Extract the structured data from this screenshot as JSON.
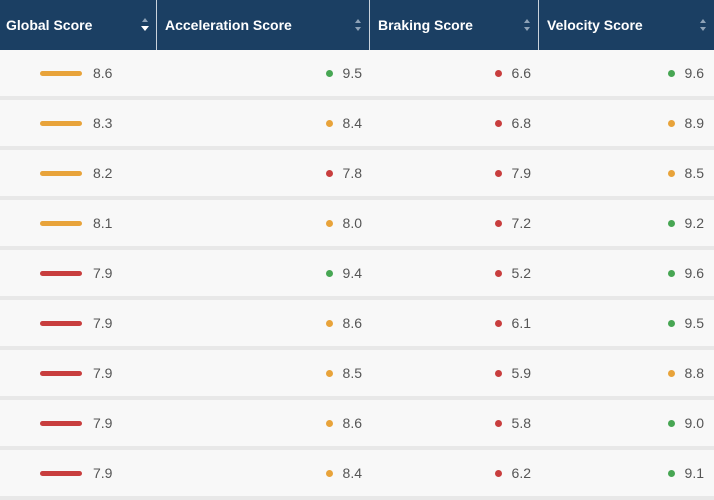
{
  "header": {
    "columns": [
      {
        "label": "Global Score",
        "sort": "desc"
      },
      {
        "label": "Acceleration Score",
        "sort": "none"
      },
      {
        "label": "Braking Score",
        "sort": "none"
      },
      {
        "label": "Velocity Score",
        "sort": "none"
      }
    ]
  },
  "colors": {
    "header_bg": "#1b3f63",
    "orange": "#e8a33a",
    "red": "#c83e3e",
    "green": "#47a653"
  },
  "rows": [
    {
      "global": "8.6",
      "global_color": "orange",
      "acc": "9.5",
      "acc_color": "green",
      "brk": "6.6",
      "brk_color": "red",
      "vel": "9.6",
      "vel_color": "green"
    },
    {
      "global": "8.3",
      "global_color": "orange",
      "acc": "8.4",
      "acc_color": "orange",
      "brk": "6.8",
      "brk_color": "red",
      "vel": "8.9",
      "vel_color": "orange"
    },
    {
      "global": "8.2",
      "global_color": "orange",
      "acc": "7.8",
      "acc_color": "red",
      "brk": "7.9",
      "brk_color": "red",
      "vel": "8.5",
      "vel_color": "orange"
    },
    {
      "global": "8.1",
      "global_color": "orange",
      "acc": "8.0",
      "acc_color": "orange",
      "brk": "7.2",
      "brk_color": "red",
      "vel": "9.2",
      "vel_color": "green"
    },
    {
      "global": "7.9",
      "global_color": "red",
      "acc": "9.4",
      "acc_color": "green",
      "brk": "5.2",
      "brk_color": "red",
      "vel": "9.6",
      "vel_color": "green"
    },
    {
      "global": "7.9",
      "global_color": "red",
      "acc": "8.6",
      "acc_color": "orange",
      "brk": "6.1",
      "brk_color": "red",
      "vel": "9.5",
      "vel_color": "green"
    },
    {
      "global": "7.9",
      "global_color": "red",
      "acc": "8.5",
      "acc_color": "orange",
      "brk": "5.9",
      "brk_color": "red",
      "vel": "8.8",
      "vel_color": "orange"
    },
    {
      "global": "7.9",
      "global_color": "red",
      "acc": "8.6",
      "acc_color": "orange",
      "brk": "5.8",
      "brk_color": "red",
      "vel": "9.0",
      "vel_color": "green"
    },
    {
      "global": "7.9",
      "global_color": "red",
      "acc": "8.4",
      "acc_color": "orange",
      "brk": "6.2",
      "brk_color": "red",
      "vel": "9.1",
      "vel_color": "green"
    }
  ]
}
